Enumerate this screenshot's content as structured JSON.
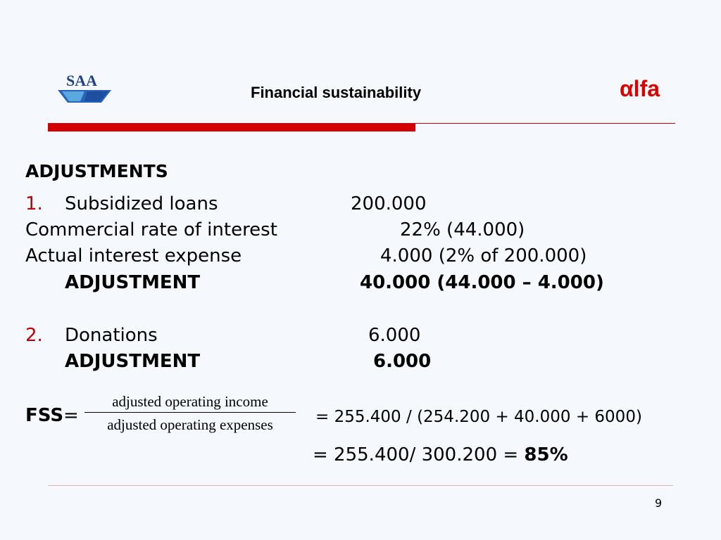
{
  "header": {
    "logo_text": "SAA",
    "title": "Financial sustainability",
    "brand": "αlfa"
  },
  "section_title": "ADJUSTMENTS",
  "item1": {
    "number": "1.",
    "label": "Subsidized loans",
    "value": "200.000",
    "rate_label": "Commercial rate of interest",
    "rate_value": "22% (44.000)",
    "actual_label": "Actual interest expense",
    "actual_value": "4.000 (2% of 200.000)",
    "adjustment_label": "ADJUSTMENT",
    "adjustment_value": "40.000 (44.000 – 4.000)"
  },
  "item2": {
    "number": "2.",
    "label": "Donations",
    "value": "6.000",
    "adjustment_label": "ADJUSTMENT",
    "adjustment_value": "6.000"
  },
  "formula": {
    "name": "FSS",
    "equals": "=",
    "numerator": "adjusted operating income",
    "denominator": "adjusted operating expenses",
    "line1": "= 255.400 / (254.200 + 40.000 + 6000)",
    "line2_prefix": "= 255.400/ 300.200 = ",
    "result": "85%"
  },
  "page_number": "9"
}
